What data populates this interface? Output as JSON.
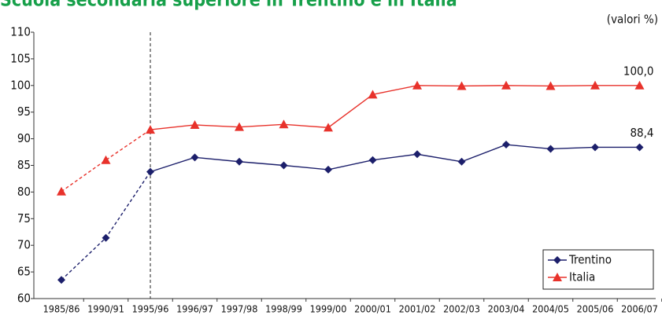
{
  "chart_data": {
    "type": "line",
    "title": "Scuola secondaria superiore in Trentino e in Italia",
    "subtitle": "(valori %)",
    "categories": [
      "1985/86",
      "1990/91",
      "1995/96",
      "1996/97",
      "1997/98",
      "1998/99",
      "1999/00",
      "2000/01",
      "2001/02",
      "2002/03",
      "2003/04",
      "2004/05",
      "2005/06",
      "2006/07"
    ],
    "series": [
      {
        "name": "Trentino",
        "color": "#1c1f6b",
        "marker": "diamond",
        "values": [
          63.5,
          71.4,
          83.8,
          86.5,
          85.7,
          85.0,
          84.2,
          86.0,
          87.1,
          85.7,
          88.9,
          88.1,
          88.4,
          88.4
        ],
        "value_labels": [
          null,
          null,
          null,
          null,
          null,
          null,
          null,
          null,
          null,
          null,
          null,
          null,
          null,
          "88,4"
        ]
      },
      {
        "name": "Italia",
        "color": "#e8322b",
        "marker": "triangle",
        "values": [
          80.1,
          86.0,
          91.7,
          92.6,
          92.2,
          92.7,
          92.1,
          98.3,
          100.0,
          99.9,
          100.0,
          99.9,
          100.0,
          100.0
        ],
        "value_labels": [
          null,
          null,
          null,
          null,
          null,
          null,
          null,
          null,
          null,
          null,
          null,
          null,
          null,
          "100,0"
        ]
      }
    ],
    "ylim": [
      60,
      110
    ],
    "yticks": [
      60,
      65,
      70,
      75,
      80,
      85,
      90,
      95,
      100,
      105,
      110
    ],
    "grid": false,
    "legend": "lower right"
  }
}
